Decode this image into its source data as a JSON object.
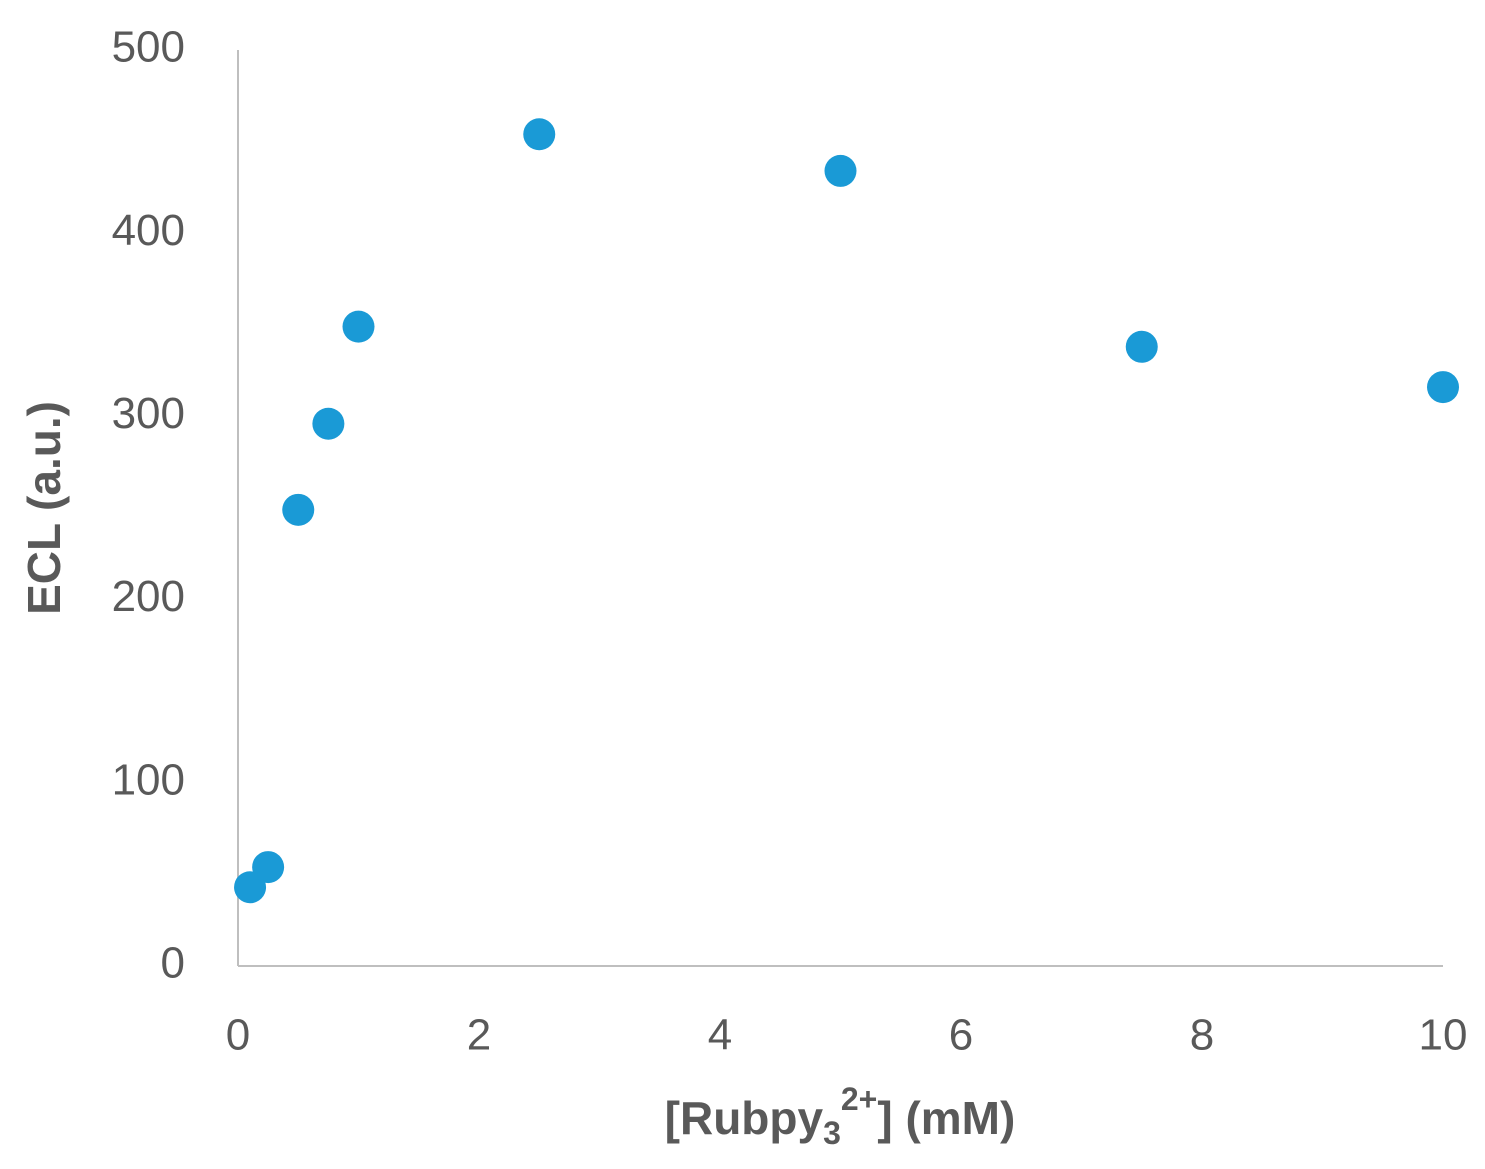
{
  "chart_data": {
    "type": "scatter",
    "y_label": "ECL (a.u.)",
    "x_label": {
      "main": "[Rubpy",
      "sub": "3",
      "sup": "2+",
      "tail": "] (mM)"
    },
    "series": [
      {
        "name": null,
        "color": "#1a9ad6",
        "x": [
          0.1,
          0.25,
          0.5,
          0.75,
          1,
          2.5,
          5,
          7.5,
          10
        ],
        "values": [
          43,
          54,
          249,
          296,
          349,
          454,
          434,
          338,
          316
        ]
      }
    ],
    "xlim": [
      0,
      10
    ],
    "xticks": [
      0,
      2,
      4,
      6,
      8,
      10
    ],
    "ylim": [
      0,
      500
    ],
    "yticks": [
      0,
      100,
      200,
      300,
      400,
      500
    ],
    "grid": false
  }
}
